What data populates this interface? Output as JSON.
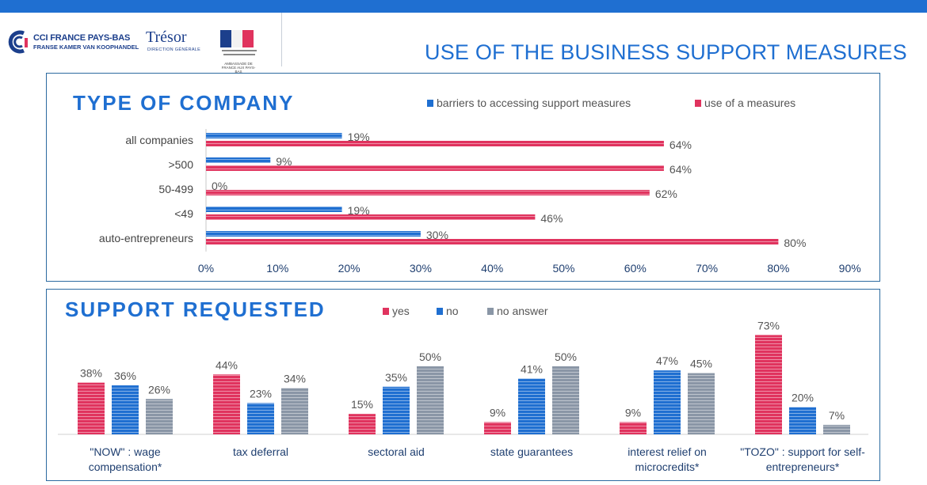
{
  "header": {
    "page_title": "USE OF THE BUSINESS SUPPORT MEASURES",
    "cci_logo_name": "CCI FRANCE PAYS-BAS",
    "cci_logo_sub": "FRANSE KAMER VAN KOOPHANDEL",
    "tresor_logo_name": "Trésor",
    "tresor_logo_sub": "DIRECTION GÉNÉRALE",
    "rf_logo_sub": "AMBASSADE DE FRANCE AUX PAYS-BAS"
  },
  "colors": {
    "blue": "#1f6fd1",
    "pink": "#e0335e",
    "gray": "#8a96a6",
    "border": "#2c6aa0"
  },
  "chart_data": [
    {
      "type": "bar",
      "orientation": "horizontal",
      "title": "TYPE OF COMPANY",
      "categories": [
        "all companies",
        ">500",
        "50-499",
        "<49",
        "auto-entrepreneurs"
      ],
      "series": [
        {
          "name": "barriers to accessing support measures",
          "values": [
            19,
            9,
            0,
            19,
            30
          ],
          "labels": [
            "19%",
            "9%",
            "0%",
            "19%",
            "30%"
          ]
        },
        {
          "name": "use of a measures",
          "values": [
            64,
            64,
            62,
            46,
            80
          ],
          "labels": [
            "64%",
            "64%",
            "62%",
            "46%",
            "80%"
          ]
        }
      ],
      "xlim": [
        0,
        90
      ],
      "xticks": [
        "0%",
        "10%",
        "20%",
        "30%",
        "40%",
        "50%",
        "60%",
        "70%",
        "80%",
        "90%"
      ],
      "legend": "top-right",
      "grid": false
    },
    {
      "type": "bar",
      "orientation": "vertical",
      "title": "SUPPORT REQUESTED",
      "categories": [
        [
          "\"NOW\" : wage",
          "compensation*"
        ],
        [
          "tax deferral"
        ],
        [
          "sectoral aid"
        ],
        [
          "state guarantees"
        ],
        [
          "interest relief on",
          "microcredits*"
        ],
        [
          "\"TOZO\" : support for self-",
          "entrepreneurs*"
        ]
      ],
      "series": [
        {
          "name": "yes",
          "values": [
            38,
            44,
            15,
            9,
            9,
            73
          ],
          "labels": [
            "38%",
            "44%",
            "15%",
            "9%",
            "9%",
            "73%"
          ]
        },
        {
          "name": "no",
          "values": [
            36,
            23,
            35,
            41,
            47,
            20
          ],
          "labels": [
            "36%",
            "23%",
            "35%",
            "41%",
            "47%",
            "20%"
          ]
        },
        {
          "name": "no answer",
          "values": [
            26,
            34,
            50,
            50,
            45,
            7
          ],
          "labels": [
            "26%",
            "34%",
            "50%",
            "50%",
            "45%",
            "7%"
          ]
        }
      ],
      "ylim": [
        0,
        80
      ],
      "legend": "top",
      "grid": false
    }
  ]
}
